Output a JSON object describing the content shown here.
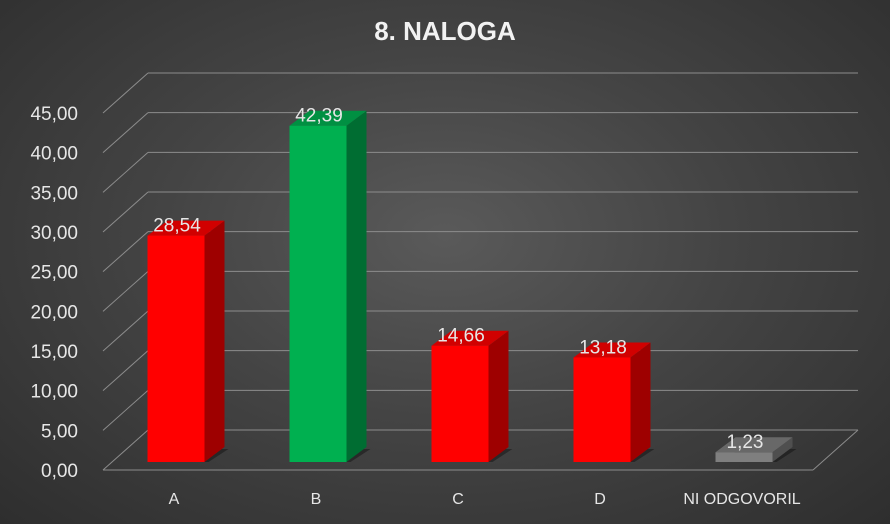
{
  "chart_data": {
    "type": "bar",
    "title": "8. NALOGA",
    "categories": [
      "A",
      "B",
      "C",
      "D",
      "NI ODGOVORIL"
    ],
    "values": [
      28.54,
      42.39,
      14.66,
      13.18,
      1.23
    ],
    "value_labels": [
      "28,54",
      "42,39",
      "14,66",
      "13,18",
      "1,23"
    ],
    "bar_colors": [
      "#ff0000",
      "#00b050",
      "#ff0000",
      "#ff0000",
      "#7f7f7f"
    ],
    "ylim": [
      0,
      45
    ],
    "yticks": [
      "0,00",
      "5,00",
      "10,00",
      "15,00",
      "20,00",
      "25,00",
      "30,00",
      "35,00",
      "40,00",
      "45,00"
    ],
    "grid": true,
    "legend": "none",
    "style": "3d-column"
  }
}
